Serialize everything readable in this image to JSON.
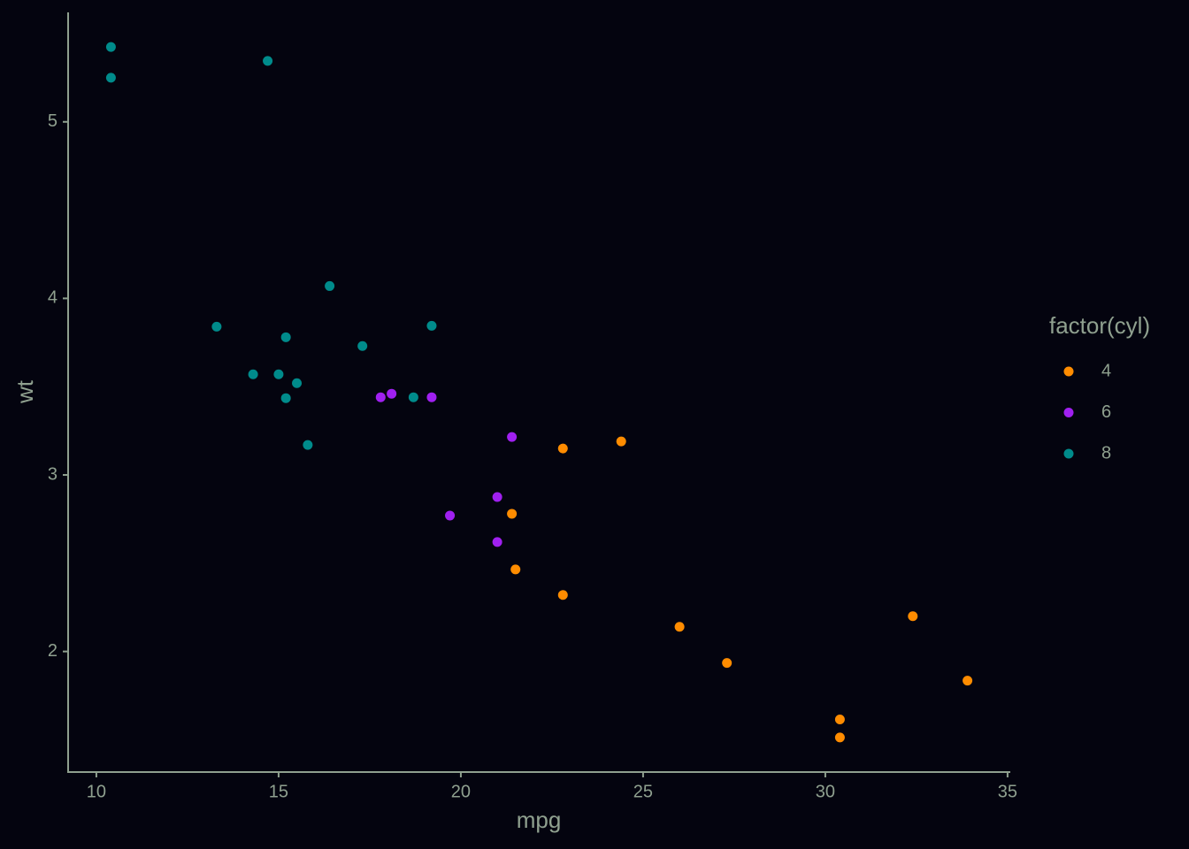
{
  "chart_data": {
    "type": "scatter",
    "x_label": "mpg",
    "y_label": "wt",
    "legend_title": "factor(cyl)",
    "legend": "right",
    "xlim": [
      9.225,
      35.075
    ],
    "ylim": [
      1.317,
      5.62
    ],
    "xticks": [
      10,
      15,
      20,
      25,
      30,
      35
    ],
    "yticks": [
      2,
      3,
      4,
      5
    ],
    "grid": false,
    "series": [
      {
        "name": "4",
        "color": "#ff8c00",
        "x": [
          22.8,
          24.4,
          22.8,
          32.4,
          30.4,
          33.9,
          21.5,
          27.3,
          26.0,
          30.4,
          21.4
        ],
        "values": [
          2.32,
          3.19,
          3.15,
          2.2,
          1.615,
          1.835,
          2.465,
          1.935,
          2.14,
          1.513,
          2.78
        ]
      },
      {
        "name": "6",
        "color": "#a020f0",
        "x": [
          21.0,
          21.0,
          21.4,
          18.1,
          19.2,
          17.8,
          19.7
        ],
        "values": [
          2.62,
          2.875,
          3.215,
          3.46,
          3.44,
          3.44,
          2.77
        ]
      },
      {
        "name": "8",
        "color": "#008b8b",
        "x": [
          18.7,
          14.3,
          16.4,
          17.3,
          15.2,
          10.4,
          10.4,
          14.7,
          15.5,
          15.2,
          13.3,
          19.2,
          15.8,
          15.0
        ],
        "values": [
          3.44,
          3.57,
          4.07,
          3.73,
          3.78,
          5.25,
          5.424,
          5.345,
          3.52,
          3.435,
          3.84,
          3.845,
          3.17,
          3.57
        ]
      }
    ]
  }
}
